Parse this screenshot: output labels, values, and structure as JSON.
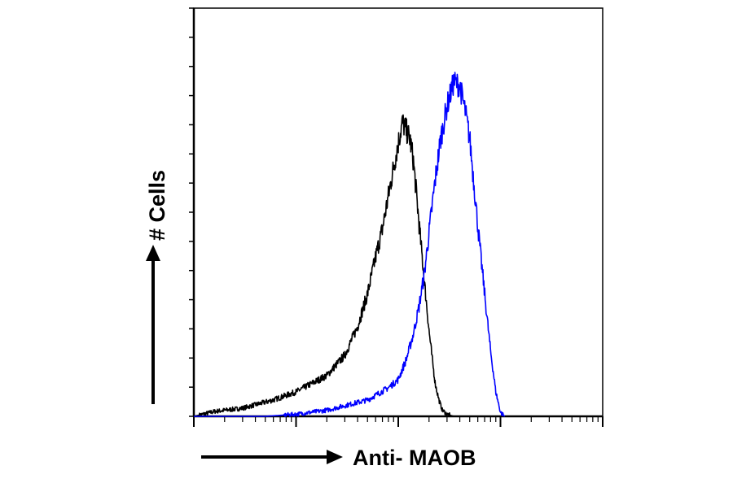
{
  "chart_data": {
    "type": "line",
    "title": "",
    "xlabel": "Anti- MAOB",
    "ylabel": "# Cells",
    "x_scale": "log",
    "xlim": [
      1,
      10000
    ],
    "ylim": [
      0,
      100
    ],
    "y_ticks": 14,
    "grid": false,
    "legend": "none",
    "series": [
      {
        "color": "#000000",
        "x": [
          1,
          1.6,
          3,
          6,
          10,
          20,
          30,
          40,
          50,
          60,
          70,
          80,
          90,
          100,
          110,
          120,
          130,
          140,
          150,
          160,
          170,
          180,
          190,
          200,
          215,
          230,
          250,
          270,
          300,
          350,
          400
        ],
        "y": [
          0,
          1.2,
          2,
          4,
          6,
          10,
          15,
          22,
          30,
          39,
          46,
          54,
          61,
          67,
          72,
          70,
          68,
          63,
          55,
          47,
          40,
          33,
          27,
          21,
          14,
          8,
          4,
          1.5,
          0.5,
          0,
          0
        ]
      },
      {
        "color": "#0000ff",
        "x": [
          1,
          5,
          10,
          20,
          50,
          80,
          100,
          120,
          140,
          160,
          180,
          200,
          230,
          260,
          300,
          350,
          400,
          450,
          500,
          560,
          620,
          700,
          800,
          900,
          1000,
          1100
        ],
        "y": [
          0,
          0,
          0.5,
          1.5,
          4,
          7,
          9,
          14,
          20,
          27,
          35,
          45,
          58,
          68,
          76,
          82,
          81,
          75,
          68,
          55,
          43,
          30,
          16,
          6,
          1,
          0
        ]
      }
    ]
  }
}
